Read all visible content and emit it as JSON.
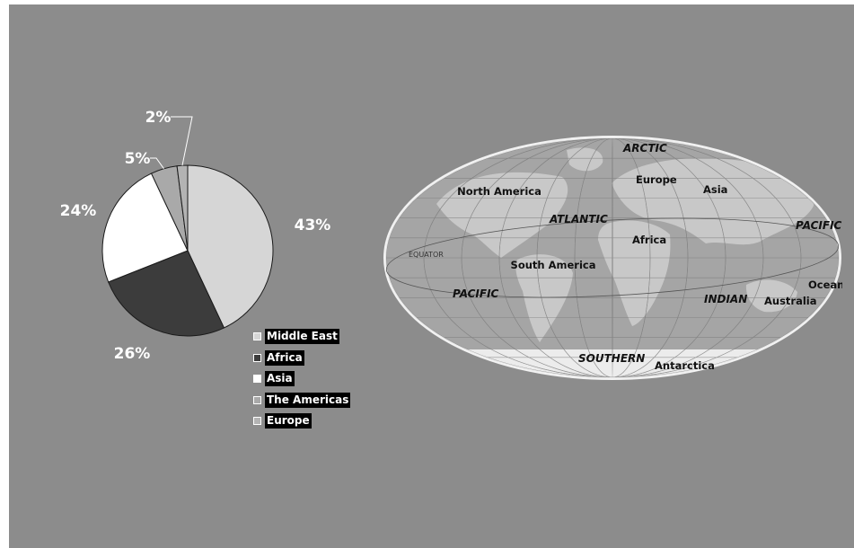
{
  "chart_data": {
    "type": "pie",
    "title": "",
    "slices": [
      {
        "label": "Middle East",
        "value": 43,
        "display": "43%",
        "color": "#d6d6d6"
      },
      {
        "label": "Africa",
        "value": 26,
        "display": "26%",
        "color": "#3c3c3c"
      },
      {
        "label": "Asia",
        "value": 24,
        "display": "24%",
        "color": "#ffffff"
      },
      {
        "label": "The Americas",
        "value": 5,
        "display": "5%",
        "color": "#a9a9a9"
      },
      {
        "label": "Europe",
        "value": 2,
        "display": "2%",
        "color": "#b3b3b3"
      }
    ],
    "legend_position": "bottom-right"
  },
  "map": {
    "oceans": [
      "ARCTIC",
      "ATLANTIC",
      "PACIFIC",
      "PACIFIC",
      "INDIAN",
      "SOUTHERN"
    ],
    "equator_label": "EQUATOR",
    "continents": [
      "North America",
      "Europe",
      "Asia",
      "Africa",
      "South America",
      "Oceania",
      "Australia",
      "Antarctica"
    ]
  },
  "colors": {
    "background": "#8c8c8c",
    "slice_outline": "#1a1a1a",
    "label_text": "#ffffff",
    "legend_label_bg": "#000000"
  }
}
